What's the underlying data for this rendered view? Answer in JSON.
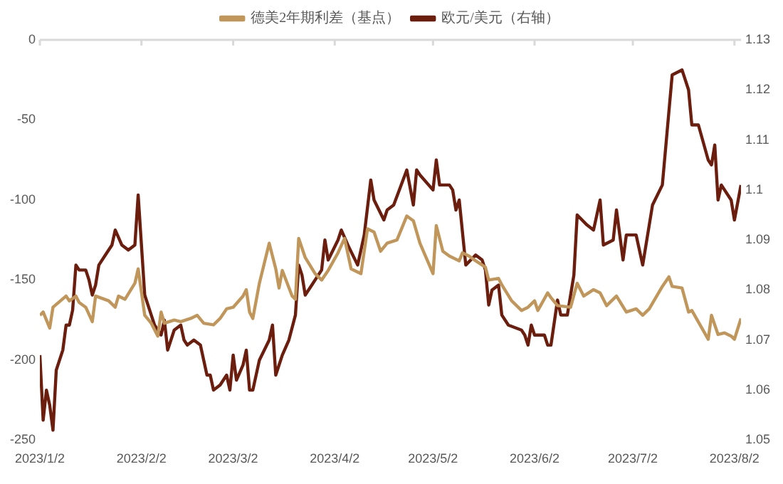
{
  "chart_data": {
    "type": "line",
    "xlim": [
      "2023-01-02",
      "2023-08-04"
    ],
    "xticks": [
      {
        "value": "2023-01-02",
        "label": "2023/1/2"
      },
      {
        "value": "2023-02-02",
        "label": "2023/2/2"
      },
      {
        "value": "2023-03-02",
        "label": "2023/3/2"
      },
      {
        "value": "2023-04-02",
        "label": "2023/4/2"
      },
      {
        "value": "2023-05-02",
        "label": "2023/5/2"
      },
      {
        "value": "2023-06-02",
        "label": "2023/6/2"
      },
      {
        "value": "2023-07-02",
        "label": "2023/7/2"
      },
      {
        "value": "2023-08-02",
        "label": "2023/8/2"
      }
    ],
    "ylim": [
      -250,
      0
    ],
    "yticks": [
      -250,
      -200,
      -150,
      -100,
      -50,
      0
    ],
    "y2lim": [
      1.05,
      1.13
    ],
    "y2ticks": [
      1.05,
      1.06,
      1.07,
      1.08,
      1.09,
      1.1,
      1.11,
      1.12,
      1.13
    ],
    "grid": false,
    "legend": "top",
    "marker": "none",
    "line_style": "solid",
    "series": [
      {
        "name": "德美2年期利差（基点）",
        "color": "#c0965a",
        "x": [
          "2023-01-02",
          "2023-01-03",
          "2023-01-05",
          "2023-01-06",
          "2023-01-10",
          "2023-01-11",
          "2023-01-13",
          "2023-01-14",
          "2023-01-16",
          "2023-01-18",
          "2023-01-19",
          "2023-01-23",
          "2023-01-25",
          "2023-01-26",
          "2023-01-28",
          "2023-01-31",
          "2023-02-01",
          "2023-02-03",
          "2023-02-05",
          "2023-02-07",
          "2023-02-08",
          "2023-02-09",
          "2023-02-12",
          "2023-02-14",
          "2023-02-17",
          "2023-02-19",
          "2023-02-21",
          "2023-02-24",
          "2023-02-26",
          "2023-02-28",
          "2023-03-02",
          "2023-03-05",
          "2023-03-06",
          "2023-03-07",
          "2023-03-08",
          "2023-03-10",
          "2023-03-13",
          "2023-03-15",
          "2023-03-16",
          "2023-03-17",
          "2023-03-20",
          "2023-03-21",
          "2023-03-22",
          "2023-03-24",
          "2023-03-27",
          "2023-03-29",
          "2023-03-31",
          "2023-04-03",
          "2023-04-05",
          "2023-04-07",
          "2023-04-10",
          "2023-04-12",
          "2023-04-14",
          "2023-04-16",
          "2023-04-18",
          "2023-04-21",
          "2023-04-24",
          "2023-04-26",
          "2023-04-28",
          "2023-05-02",
          "2023-05-03",
          "2023-05-05",
          "2023-05-07",
          "2023-05-10",
          "2023-05-11",
          "2023-05-13",
          "2023-05-15",
          "2023-05-18",
          "2023-05-19",
          "2023-05-22",
          "2023-05-23",
          "2023-05-26",
          "2023-05-29",
          "2023-05-31",
          "2023-06-02",
          "2023-06-03",
          "2023-06-06",
          "2023-06-07",
          "2023-06-09",
          "2023-06-13",
          "2023-06-15",
          "2023-06-17",
          "2023-06-20",
          "2023-06-22",
          "2023-06-24",
          "2023-06-27",
          "2023-06-30",
          "2023-07-03",
          "2023-07-05",
          "2023-07-07",
          "2023-07-11",
          "2023-07-13",
          "2023-07-14",
          "2023-07-17",
          "2023-07-19",
          "2023-07-20",
          "2023-07-25",
          "2023-07-26",
          "2023-07-28",
          "2023-07-30",
          "2023-08-01",
          "2023-08-02",
          "2023-08-04"
        ],
        "values": [
          -172,
          -170,
          -180,
          -167,
          -160,
          -163,
          -160,
          -164,
          -167,
          -176,
          -160,
          -163,
          -167,
          -160,
          -162,
          -152,
          -143,
          -172,
          -177,
          -185,
          -170,
          -177,
          -175,
          -176,
          -174,
          -172,
          -177,
          -178,
          -174,
          -168,
          -167,
          -160,
          -156,
          -170,
          -174,
          -152,
          -127,
          -143,
          -155,
          -144,
          -160,
          -162,
          -124,
          -136,
          -146,
          -150,
          -144,
          -133,
          -124,
          -143,
          -146,
          -118,
          -120,
          -132,
          -127,
          -125,
          -110,
          -113,
          -127,
          -146,
          -116,
          -132,
          -135,
          -138,
          -133,
          -135,
          -138,
          -142,
          -150,
          -149,
          -153,
          -163,
          -169,
          -167,
          -163,
          -169,
          -158,
          -161,
          -166,
          -167,
          -152,
          -160,
          -156,
          -158,
          -166,
          -160,
          -170,
          -168,
          -172,
          -168,
          -154,
          -148,
          -154,
          -155,
          -170,
          -169,
          -187,
          -172,
          -184,
          -183,
          -185,
          -187,
          -174
        ]
      },
      {
        "name": "欧元/美元（右轴）",
        "color": "#6b1e0e",
        "axis": "y2",
        "x": [
          "2023-01-02",
          "2023-01-03",
          "2023-01-04",
          "2023-01-05",
          "2023-01-06",
          "2023-01-07",
          "2023-01-09",
          "2023-01-10",
          "2023-01-11",
          "2023-01-12",
          "2023-01-13",
          "2023-01-14",
          "2023-01-16",
          "2023-01-17",
          "2023-01-18",
          "2023-01-19",
          "2023-01-20",
          "2023-01-22",
          "2023-01-24",
          "2023-01-25",
          "2023-01-27",
          "2023-01-29",
          "2023-01-31",
          "2023-02-01",
          "2023-02-03",
          "2023-02-05",
          "2023-02-06",
          "2023-02-08",
          "2023-02-09",
          "2023-02-10",
          "2023-02-12",
          "2023-02-14",
          "2023-02-15",
          "2023-02-16",
          "2023-02-18",
          "2023-02-20",
          "2023-02-22",
          "2023-02-23",
          "2023-02-24",
          "2023-02-26",
          "2023-02-28",
          "2023-03-01",
          "2023-03-02",
          "2023-03-03",
          "2023-03-05",
          "2023-03-06",
          "2023-03-07",
          "2023-03-08",
          "2023-03-10",
          "2023-03-13",
          "2023-03-14",
          "2023-03-15",
          "2023-03-17",
          "2023-03-19",
          "2023-03-21",
          "2023-03-22",
          "2023-03-23",
          "2023-03-24",
          "2023-03-26",
          "2023-03-28",
          "2023-03-29",
          "2023-03-30",
          "2023-03-31",
          "2023-04-03",
          "2023-04-04",
          "2023-04-06",
          "2023-04-09",
          "2023-04-11",
          "2023-04-13",
          "2023-04-14",
          "2023-04-17",
          "2023-04-18",
          "2023-04-20",
          "2023-04-24",
          "2023-04-26",
          "2023-04-27",
          "2023-04-28",
          "2023-05-02",
          "2023-05-03",
          "2023-05-04",
          "2023-05-07",
          "2023-05-08",
          "2023-05-09",
          "2023-05-10",
          "2023-05-12",
          "2023-05-15",
          "2023-05-17",
          "2023-05-18",
          "2023-05-19",
          "2023-05-20",
          "2023-05-22",
          "2023-05-23",
          "2023-05-25",
          "2023-05-29",
          "2023-05-30",
          "2023-05-31",
          "2023-06-01",
          "2023-06-02",
          "2023-06-05",
          "2023-06-06",
          "2023-06-07",
          "2023-06-09",
          "2023-06-10",
          "2023-06-12",
          "2023-06-14",
          "2023-06-15",
          "2023-06-18",
          "2023-06-20",
          "2023-06-22",
          "2023-06-23",
          "2023-06-26",
          "2023-06-27",
          "2023-06-29",
          "2023-06-30",
          "2023-07-03",
          "2023-07-05",
          "2023-07-08",
          "2023-07-11",
          "2023-07-14",
          "2023-07-17",
          "2023-07-19",
          "2023-07-20",
          "2023-07-22",
          "2023-07-25",
          "2023-07-26",
          "2023-07-27",
          "2023-07-28",
          "2023-07-29",
          "2023-08-01",
          "2023-08-02",
          "2023-08-04"
        ],
        "values": [
          1.067,
          1.054,
          1.06,
          1.057,
          1.052,
          1.064,
          1.068,
          1.073,
          1.073,
          1.076,
          1.085,
          1.084,
          1.084,
          1.082,
          1.079,
          1.081,
          1.085,
          1.087,
          1.089,
          1.092,
          1.089,
          1.088,
          1.089,
          1.099,
          1.079,
          1.075,
          1.073,
          1.071,
          1.074,
          1.068,
          1.072,
          1.073,
          1.07,
          1.069,
          1.07,
          1.069,
          1.063,
          1.063,
          1.06,
          1.061,
          1.063,
          1.06,
          1.067,
          1.062,
          1.065,
          1.068,
          1.06,
          1.06,
          1.066,
          1.07,
          1.073,
          1.063,
          1.067,
          1.07,
          1.075,
          1.085,
          1.083,
          1.079,
          1.081,
          1.083,
          1.084,
          1.09,
          1.086,
          1.09,
          1.092,
          1.089,
          1.085,
          1.091,
          1.102,
          1.098,
          1.094,
          1.096,
          1.097,
          1.104,
          1.097,
          1.104,
          1.103,
          1.1,
          1.106,
          1.101,
          1.101,
          1.1,
          1.096,
          1.098,
          1.085,
          1.087,
          1.086,
          1.084,
          1.077,
          1.08,
          1.081,
          1.075,
          1.073,
          1.072,
          1.071,
          1.069,
          1.073,
          1.071,
          1.071,
          1.069,
          1.069,
          1.078,
          1.075,
          1.075,
          1.083,
          1.095,
          1.093,
          1.092,
          1.098,
          1.089,
          1.09,
          1.096,
          1.086,
          1.091,
          1.091,
          1.085,
          1.097,
          1.101,
          1.123,
          1.124,
          1.12,
          1.113,
          1.113,
          1.106,
          1.105,
          1.109,
          1.098,
          1.101,
          1.098,
          1.094,
          1.101
        ]
      }
    ]
  }
}
